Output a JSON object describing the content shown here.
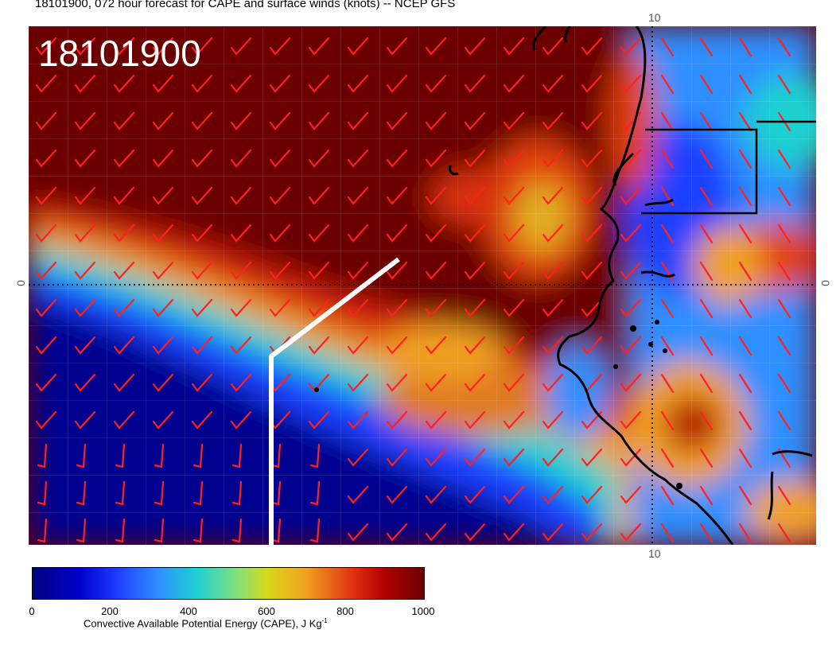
{
  "title": "18101900, 072 hour forecast for CAPE and surface winds (knots) -- NCEP GFS",
  "date_stamp": "18101900",
  "axis_labels": {
    "top": "10",
    "bottom": "10",
    "left": "0",
    "right": "0"
  },
  "colorbar": {
    "ticks": [
      "0",
      "200",
      "400",
      "600",
      "800",
      "1000"
    ],
    "label_main": "Convective Available Potential Energy (CAPE), J Kg",
    "label_sup": "-1"
  },
  "colors": {
    "wind_barb": "#ff2020",
    "coastline": "#000000",
    "track": "#ffffff",
    "cape_high": "#6b0000",
    "cape_low": "#00007f"
  },
  "icons": [
    "wind-barb-icon"
  ]
}
